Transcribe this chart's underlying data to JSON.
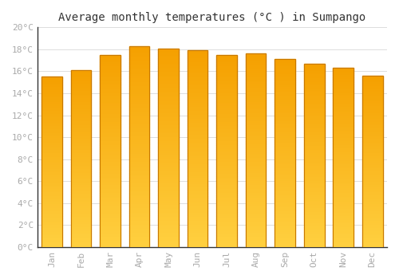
{
  "title": "Average monthly temperatures (°C ) in Sumpango",
  "months": [
    "Jan",
    "Feb",
    "Mar",
    "Apr",
    "May",
    "Jun",
    "Jul",
    "Aug",
    "Sep",
    "Oct",
    "Nov",
    "Dec"
  ],
  "values": [
    15.5,
    16.1,
    17.5,
    18.3,
    18.1,
    17.9,
    17.5,
    17.6,
    17.1,
    16.7,
    16.3,
    15.6
  ],
  "bar_color_bottom": "#FFD040",
  "bar_color_top": "#F5A000",
  "bar_edge_color": "#C87800",
  "ylim": [
    0,
    20
  ],
  "ytick_step": 2,
  "background_color": "#FFFFFF",
  "grid_color": "#DDDDDD",
  "title_fontsize": 10,
  "tick_fontsize": 8,
  "tick_color": "#AAAAAA",
  "font_family": "monospace",
  "bar_width": 0.7
}
